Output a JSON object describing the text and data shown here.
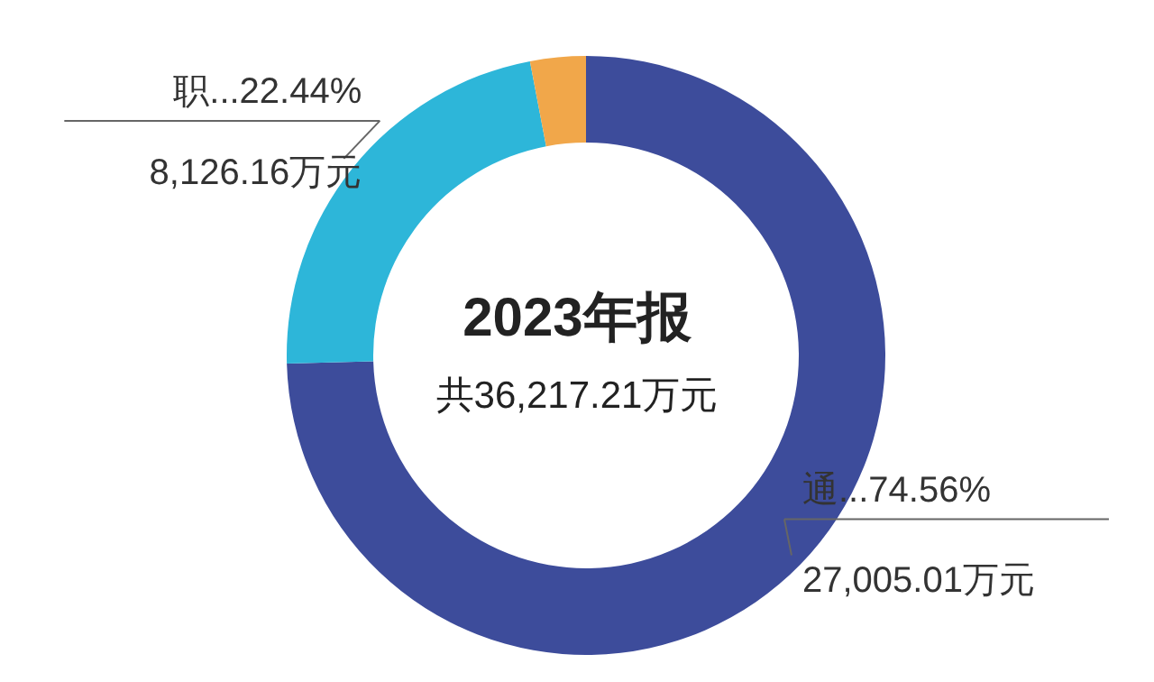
{
  "chart_data": {
    "type": "donut",
    "title": "2023年报",
    "annotations": [
      "共36,217.21万元"
    ],
    "categories": [
      "通...",
      "职...",
      null
    ],
    "values": [
      27005.01,
      8126.16,
      1086.04
    ],
    "colors": [
      "#3d4c9b",
      "#2db6d9",
      "#f1a74a"
    ],
    "value_labels": [
      "74.56%\n27,005.01万元",
      "22.44%\n8,126.16万元",
      null
    ]
  }
}
